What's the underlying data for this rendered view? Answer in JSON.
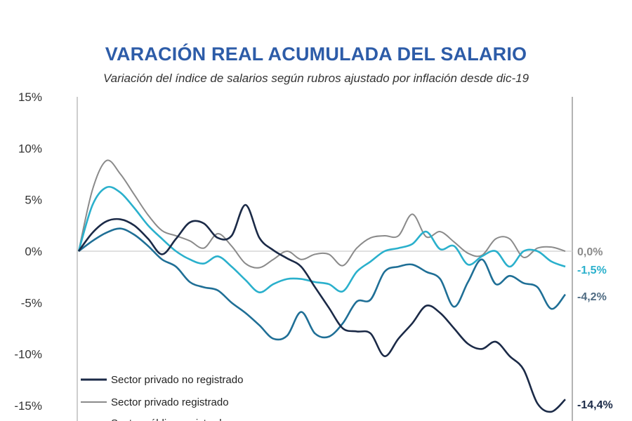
{
  "chart_data": {
    "type": "line",
    "title": "VARACIÓN REAL ACUMULADA DEL SALARIO",
    "subtitle": "Variación del índice de salarios según rubros ajustado por inflación desde dic-19",
    "xlabel": "",
    "ylabel": "",
    "ylim": [
      -15,
      15
    ],
    "yticks": [
      "15%",
      "10%",
      "5%",
      "0%",
      "-5%",
      "-10%",
      "-15%"
    ],
    "ytick_values": [
      15,
      10,
      5,
      0,
      -5,
      -10,
      -15
    ],
    "grid": false,
    "zero_line": true,
    "legend_placement": "bottom-left",
    "series": [
      {
        "name": "Sector privado no registrado",
        "color": "#1b2a47",
        "end_label": "-14,4%",
        "values": [
          0,
          1.8,
          2.9,
          3.1,
          2.5,
          1.2,
          -0.3,
          1.2,
          2.8,
          2.7,
          1.3,
          1.5,
          4.5,
          1.3,
          0.1,
          -0.7,
          -1.5,
          -3.5,
          -5.5,
          -7.5,
          -7.8,
          -8.0,
          -10.2,
          -8.5,
          -7.0,
          -5.3,
          -6.0,
          -7.5,
          -9.0,
          -9.5,
          -8.8,
          -10.2,
          -11.5,
          -14.8,
          -15.6,
          -14.4
        ]
      },
      {
        "name": "Sector privado registrado",
        "color": "#8a8a8a",
        "end_label": "0,0%",
        "values": [
          0,
          6,
          8.8,
          7.5,
          5.5,
          3.5,
          2,
          1.5,
          1,
          0.3,
          1.7,
          0.5,
          -1.2,
          -1.6,
          -0.8,
          0,
          -0.8,
          -0.3,
          -0.3,
          -1.4,
          0.3,
          1.3,
          1.5,
          1.5,
          3.6,
          1.4,
          1.9,
          0.9,
          -0.2,
          -0.4,
          1.2,
          1.2,
          -0.6,
          0.3,
          0.4,
          0.0
        ]
      },
      {
        "name": "Sector público registrado",
        "color": "#2ab0cc",
        "end_label": "-1,5%",
        "values": [
          0,
          4.5,
          6.2,
          5.7,
          4.2,
          2.5,
          1.2,
          0,
          -0.8,
          -1.2,
          -0.5,
          -1.5,
          -2.8,
          -4.0,
          -3.2,
          -2.7,
          -2.7,
          -3.0,
          -3.2,
          -3.9,
          -2.0,
          -1.0,
          0,
          0.3,
          0.7,
          1.9,
          0.2,
          0.5,
          -1.3,
          -0.5,
          0,
          -1.5,
          0,
          0,
          -1.0,
          -1.5
        ]
      },
      {
        "color": "#1f6f96",
        "end_label": "-4,2%",
        "values": [
          0,
          1.0,
          1.8,
          2.2,
          1.6,
          0.5,
          -0.8,
          -1.5,
          -3.0,
          -3.5,
          -3.8,
          -5.0,
          -6.0,
          -7.2,
          -8.5,
          -8.2,
          -5.9,
          -8.0,
          -8.3,
          -7.0,
          -4.9,
          -4.7,
          -2.0,
          -1.5,
          -1.3,
          -2.0,
          -2.7,
          -5.4,
          -3.0,
          -0.8,
          -3.2,
          -2.4,
          -3.1,
          -3.5,
          -5.6,
          -4.2
        ]
      }
    ],
    "end_label_colors": [
      "#1b2a47",
      "#8a8a8a",
      "#2ab0cc",
      "#4f6b82"
    ]
  }
}
